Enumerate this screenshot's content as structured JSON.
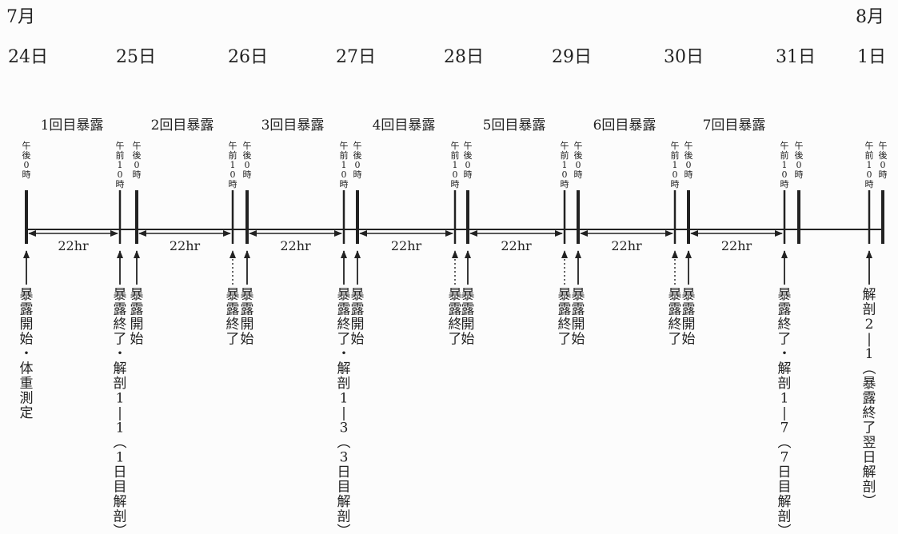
{
  "months": {
    "start": "7月",
    "end": "8月"
  },
  "dates": [
    "24日",
    "25日",
    "26日",
    "27日",
    "28日",
    "29日",
    "30日",
    "31日",
    "1日"
  ],
  "periods": [
    "1回目暴露",
    "2回目暴露",
    "3回目暴露",
    "4回目暴露",
    "5回目暴露",
    "6回目暴露",
    "7回目暴露"
  ],
  "duration": "22hr",
  "day_marks": [
    {
      "items": [
        {
          "label": "午後0時"
        }
      ]
    },
    {
      "items": [
        {
          "label": "午前10時"
        },
        {
          "label": "午後0時"
        }
      ]
    },
    {
      "items": [
        {
          "label": "午前10時"
        },
        {
          "label": "午後0時"
        }
      ]
    },
    {
      "items": [
        {
          "label": "午前10時"
        },
        {
          "label": "午後0時"
        }
      ]
    },
    {
      "items": [
        {
          "label": "午前10時"
        },
        {
          "label": "午後0時"
        }
      ]
    },
    {
      "items": [
        {
          "label": "午前10時"
        },
        {
          "label": "午後0時"
        }
      ]
    },
    {
      "items": [
        {
          "label": "午前10時"
        },
        {
          "label": "午後0時"
        }
      ]
    },
    {
      "items": [
        {
          "label": "午前10時"
        },
        {
          "label": "午後0時"
        }
      ]
    },
    {
      "items": [
        {
          "label": "午前10時"
        },
        {
          "label": "午後0時"
        }
      ]
    }
  ],
  "events": [
    {
      "day": 0,
      "slot": 0,
      "text": "暴露開始・体重測定",
      "style": "solid"
    },
    {
      "day": 1,
      "slot": 0,
      "text": "暴露終了・解剖1—1(1日目解剖)",
      "style": "solid"
    },
    {
      "day": 1,
      "slot": 1,
      "text": "暴露開始",
      "style": "solid"
    },
    {
      "day": 2,
      "slot": 0,
      "text": "暴露終了",
      "style": "dotted"
    },
    {
      "day": 2,
      "slot": 1,
      "text": "暴露開始",
      "style": "solid"
    },
    {
      "day": 3,
      "slot": 0,
      "text": "暴露終了・解剖1—3(3日目解剖)",
      "style": "solid"
    },
    {
      "day": 3,
      "slot": 1,
      "text": "暴露開始",
      "style": "solid"
    },
    {
      "day": 4,
      "slot": 0,
      "text": "暴露終了",
      "style": "dotted"
    },
    {
      "day": 4,
      "slot": 1,
      "text": "暴露開始",
      "style": "solid"
    },
    {
      "day": 5,
      "slot": 0,
      "text": "暴露終了",
      "style": "dotted"
    },
    {
      "day": 5,
      "slot": 1,
      "text": "暴露開始",
      "style": "solid"
    },
    {
      "day": 6,
      "slot": 0,
      "text": "暴露終了",
      "style": "dotted"
    },
    {
      "day": 6,
      "slot": 1,
      "text": "暴露開始",
      "style": "solid"
    },
    {
      "day": 7,
      "slot": 0,
      "text": "暴露終了・解剖1—7(7日目解剖)",
      "style": "solid"
    },
    {
      "day": 8,
      "slot": 0,
      "text": "解剖2—1(暴露終了翌日解剖)",
      "style": "solid"
    }
  ],
  "colors": {
    "ink": "#222222",
    "background": "#fcfcfc"
  }
}
